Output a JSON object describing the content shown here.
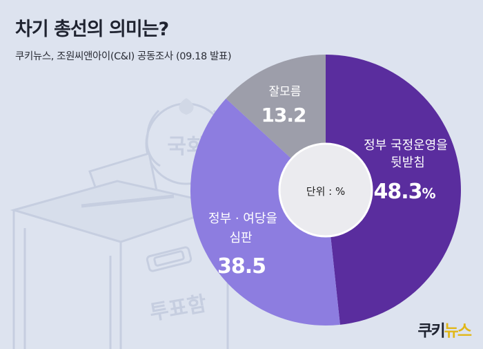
{
  "header": {
    "title": "차기 총선의 의미는?",
    "subtitle": "쿠키뉴스, 조원씨앤아이(C&I) 공동조사 (09.18 발표)"
  },
  "background_illustration": {
    "box_label": "투표함",
    "seal_label": "국회"
  },
  "chart_data": {
    "type": "pie",
    "variant": "donut",
    "center_label": "단위 : %",
    "start": "12 o'clock, clockwise",
    "slices": [
      {
        "label_lines": [
          "정부 국정운영을",
          "뒷받침"
        ],
        "value": 48.3,
        "value_text": "48.3",
        "unit": "%",
        "color": "#5a2d9e"
      },
      {
        "label_lines": [
          "정부 · 여당을",
          "심판"
        ],
        "value": 38.5,
        "value_text": "38.5",
        "unit": "",
        "color": "#8d7de0"
      },
      {
        "label_lines": [
          "잘모름"
        ],
        "value": 13.2,
        "value_text": "13.2",
        "unit": "",
        "color": "#9d9eaa"
      }
    ]
  },
  "logo": {
    "part1": "쿠키",
    "part2": "뉴스"
  }
}
